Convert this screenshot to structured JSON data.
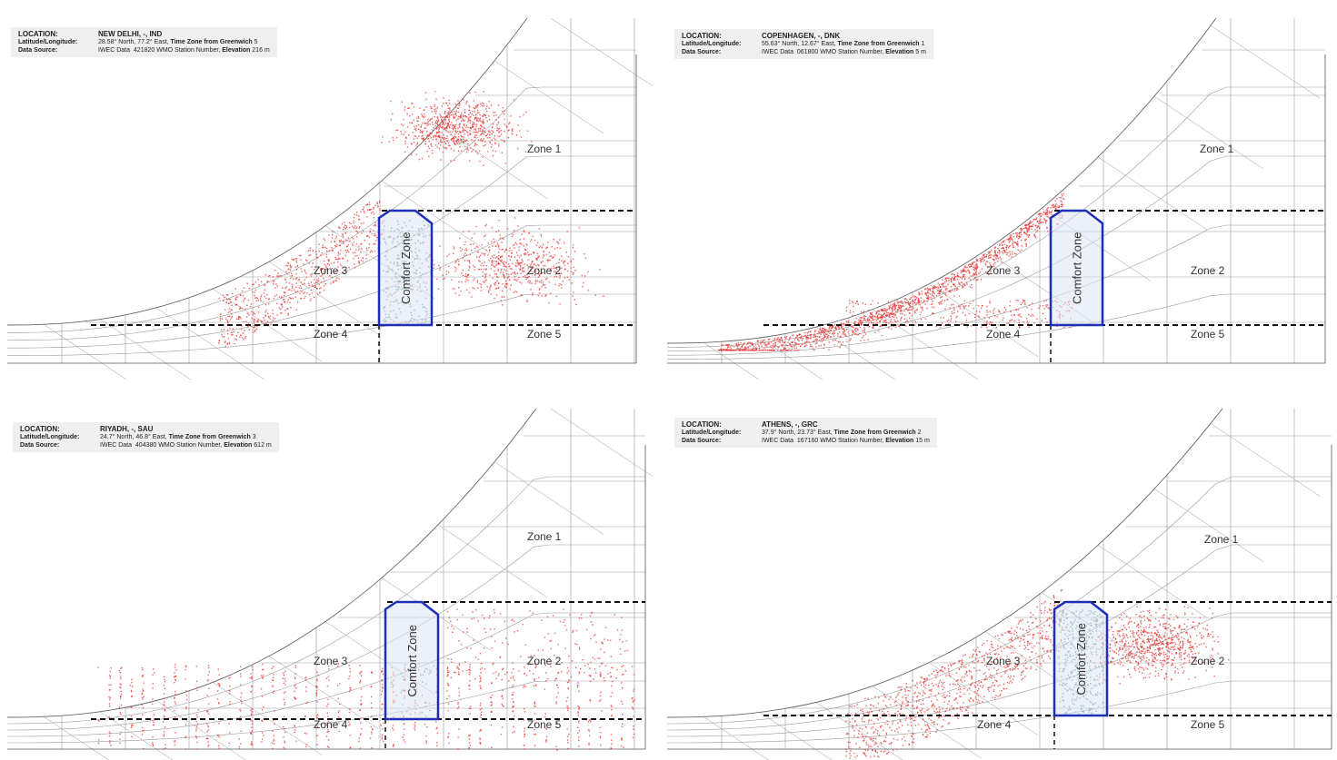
{
  "panels": [
    {
      "id": "new-delhi",
      "location": "NEW DELHI, -, IND",
      "latlon": "28.58° North, 77.2° East,",
      "tz_label": "Time Zone from Greenwich",
      "tz": "5",
      "source": "IWEC Data",
      "station": "421820",
      "station_label": "WMO Station Number,",
      "elev_label": "Elevation",
      "elev": "216 m",
      "zones": [
        "Zone 1",
        "Zone 2",
        "Zone 3",
        "Zone 4",
        "Zone 5"
      ],
      "comfort": "Comfort Zone",
      "density": {
        "z1": 900,
        "z2": 900,
        "z3": 700,
        "z4": 60,
        "z5": 80,
        "comfort": 260
      }
    },
    {
      "id": "copenhagen",
      "location": "COPENHAGEN, -, DNK",
      "latlon": "55.63° North, 12.67° East,",
      "tz_label": "Time Zone from Greenwich",
      "tz": "1",
      "source": "IWEC Data",
      "station": "061800",
      "station_label": "WMO Station Number,",
      "elev_label": "Elevation",
      "elev": "5 m",
      "zones": [
        "Zone 1",
        "Zone 2",
        "Zone 3",
        "Zone 4",
        "Zone 5"
      ],
      "comfort": "Comfort Zone",
      "density": {
        "z1": 0,
        "z2": 20,
        "z3": 2200,
        "z4": 800,
        "z5": 0,
        "comfort": 15
      }
    },
    {
      "id": "riyadh",
      "location": "RIYADH, -, SAU",
      "latlon": "24.7° North, 46.8° East,",
      "tz_label": "Time Zone from Greenwich",
      "tz": "3",
      "source": "IWEC Data",
      "station": "404380",
      "station_label": "WMO Station Number,",
      "elev_label": "Elevation",
      "elev": "612 m",
      "zones": [
        "Zone 1",
        "Zone 2",
        "Zone 3",
        "Zone 4",
        "Zone 5"
      ],
      "comfort": "Comfort Zone",
      "density": {
        "z1": 10,
        "z2": 600,
        "z3": 300,
        "z4": 350,
        "z5": 700,
        "comfort": 60
      }
    },
    {
      "id": "athens",
      "location": "ATHENS, -, GRC",
      "latlon": "37.9° North, 23.73° East,",
      "tz_label": "Time Zone from Greenwich",
      "tz": "2",
      "source": "IWEC Data",
      "station": "167160",
      "station_label": "WMO Station Number,",
      "elev_label": "Elevation",
      "elev": "15 m",
      "zones": [
        "Zone 1",
        "Zone 2",
        "Zone 3",
        "Zone 4",
        "Zone 5"
      ],
      "comfort": "Comfort Zone",
      "density": {
        "z1": 150,
        "z2": 900,
        "z3": 1100,
        "z4": 30,
        "z5": 40,
        "comfort": 350
      }
    }
  ],
  "labels": {
    "location_key": "LOCATION:",
    "latlon_key": "Latitude/Longitude:",
    "source_key": "Data Source:"
  },
  "colors": {
    "points": "#e8322f",
    "comfort_fill": "#dce3f3",
    "comfort_stroke": "#1f2fb5",
    "comfort_points": "#2f7a6a",
    "grid": "#9a9a9a",
    "dashed": "#111111"
  },
  "chart_data": [
    {
      "type": "scatter",
      "title": "NEW DELHI, -, IND",
      "series": [],
      "annotations": [
        "Zone 1",
        "Zone 2",
        "Zone 3",
        "Zone 4",
        "Zone 5",
        "Comfort Zone"
      ]
    },
    {
      "type": "scatter",
      "title": "COPENHAGEN, -, DNK",
      "series": [],
      "annotations": [
        "Zone 1",
        "Zone 2",
        "Zone 3",
        "Zone 4",
        "Zone 5",
        "Comfort Zone"
      ]
    },
    {
      "type": "scatter",
      "title": "RIYADH, -, SAU",
      "series": [],
      "annotations": [
        "Zone 1",
        "Zone 2",
        "Zone 3",
        "Zone 4",
        "Zone 5",
        "Comfort Zone"
      ]
    },
    {
      "type": "scatter",
      "title": "ATHENS, -, GRC",
      "series": [],
      "annotations": [
        "Zone 1",
        "Zone 2",
        "Zone 3",
        "Zone 4",
        "Zone 5",
        "Comfort Zone"
      ]
    }
  ]
}
